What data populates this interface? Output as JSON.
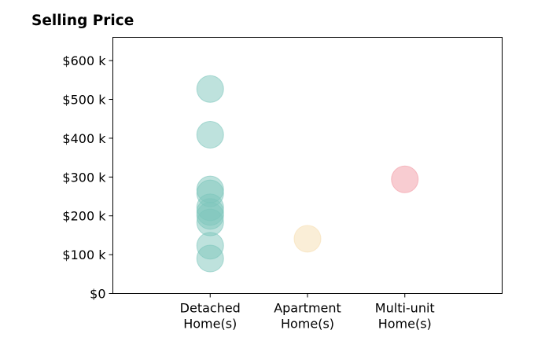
{
  "chart_data": {
    "type": "scatter",
    "title": "Selling Price",
    "xlabel": "",
    "ylabel": "",
    "categories": [
      [
        "Detached",
        "Home(s)"
      ],
      [
        "Apartment",
        "Home(s)"
      ],
      [
        "Multi-unit",
        "Home(s)"
      ]
    ],
    "x_range": [
      -1,
      3
    ],
    "ylim": [
      0,
      660000
    ],
    "y_ticks": [
      0,
      100000,
      200000,
      300000,
      400000,
      500000,
      600000
    ],
    "y_tick_labels": [
      "$0",
      "$100 k",
      "$200 k",
      "$300 k",
      "$400 k",
      "$500 k",
      "$600 k"
    ],
    "grid": false,
    "series": [
      {
        "color": "#7dc6bc",
        "points": [
          {
            "x": 0,
            "y": 527000
          },
          {
            "x": 0,
            "y": 409000
          },
          {
            "x": 0,
            "y": 268000
          },
          {
            "x": 0,
            "y": 258000
          },
          {
            "x": 0,
            "y": 222000
          },
          {
            "x": 0,
            "y": 210000
          },
          {
            "x": 0,
            "y": 200000
          },
          {
            "x": 0,
            "y": 183000
          },
          {
            "x": 0,
            "y": 123000
          },
          {
            "x": 0,
            "y": 90000
          }
        ]
      },
      {
        "color": "#f6deb0",
        "points": [
          {
            "x": 1,
            "y": 141000
          }
        ]
      },
      {
        "color": "#f29aa3",
        "points": [
          {
            "x": 2,
            "y": 294000
          }
        ]
      }
    ]
  }
}
